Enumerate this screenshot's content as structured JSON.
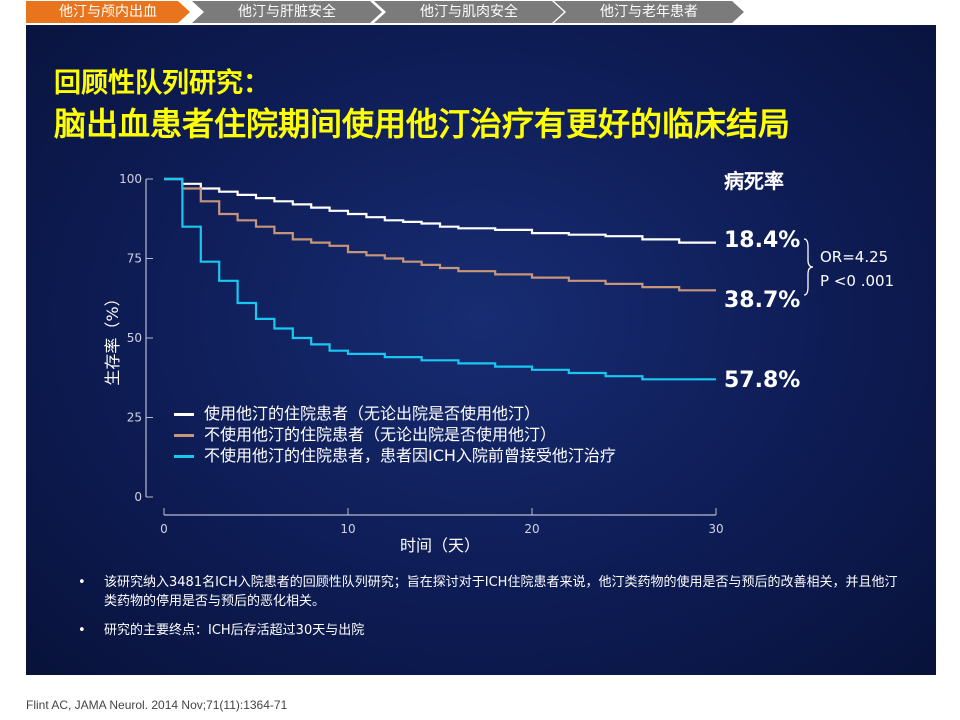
{
  "tabs": [
    {
      "label": "他汀与颅内出血",
      "active": true
    },
    {
      "label": "他汀与肝脏安全",
      "active": false
    },
    {
      "label": "他汀与肌肉安全",
      "active": false
    },
    {
      "label": "他汀与老年患者",
      "active": false
    }
  ],
  "title": {
    "line1": "回顾性队列研究：",
    "line2": "脑出血患者住院期间使用他汀治疗有更好的临床结局"
  },
  "mortality": {
    "label": "病死率",
    "values": [
      "18.4%",
      "38.7%",
      "57.8%"
    ],
    "or_text": "OR=4.25",
    "p_text": "P <0 .001"
  },
  "chart_data": {
    "type": "line",
    "title": "",
    "xlabel": "时间（天）",
    "ylabel": "生存率（%）",
    "xlim": [
      0,
      30
    ],
    "ylim": [
      0,
      100
    ],
    "xticks": [
      0,
      10,
      20,
      30
    ],
    "yticks": [
      0,
      25,
      50,
      75,
      100
    ],
    "series": [
      {
        "name": "使用他汀的住院患者（无论出院是否使用他汀）",
        "color": "#ffffff",
        "points": [
          [
            0,
            100
          ],
          [
            1,
            100
          ],
          [
            1,
            98.5
          ],
          [
            2,
            98.5
          ],
          [
            2,
            97
          ],
          [
            3,
            97
          ],
          [
            3,
            96
          ],
          [
            4,
            96
          ],
          [
            4,
            95
          ],
          [
            5,
            95
          ],
          [
            5,
            94
          ],
          [
            6,
            94
          ],
          [
            6,
            93
          ],
          [
            7,
            93
          ],
          [
            7,
            92
          ],
          [
            8,
            92
          ],
          [
            8,
            91
          ],
          [
            9,
            91
          ],
          [
            9,
            90
          ],
          [
            10,
            90
          ],
          [
            10,
            89
          ],
          [
            11,
            89
          ],
          [
            11,
            88
          ],
          [
            12,
            88
          ],
          [
            12,
            87
          ],
          [
            13,
            87
          ],
          [
            13,
            86.5
          ],
          [
            14,
            86.5
          ],
          [
            14,
            86
          ],
          [
            15,
            86
          ],
          [
            15,
            85
          ],
          [
            16,
            85
          ],
          [
            16,
            84.5
          ],
          [
            18,
            84.5
          ],
          [
            18,
            84
          ],
          [
            20,
            84
          ],
          [
            20,
            83
          ],
          [
            22,
            83
          ],
          [
            22,
            82.5
          ],
          [
            24,
            82.5
          ],
          [
            24,
            82
          ],
          [
            26,
            82
          ],
          [
            26,
            81
          ],
          [
            28,
            81
          ],
          [
            28,
            80
          ],
          [
            30,
            80
          ]
        ]
      },
      {
        "name": "不使用他汀的住院患者（无论出院是否使用他汀）",
        "color": "#c8957a",
        "points": [
          [
            0,
            100
          ],
          [
            1,
            100
          ],
          [
            1,
            97
          ],
          [
            2,
            97
          ],
          [
            2,
            93
          ],
          [
            3,
            93
          ],
          [
            3,
            89
          ],
          [
            4,
            89
          ],
          [
            4,
            87
          ],
          [
            5,
            87
          ],
          [
            5,
            85
          ],
          [
            6,
            85
          ],
          [
            6,
            83
          ],
          [
            7,
            83
          ],
          [
            7,
            81
          ],
          [
            8,
            81
          ],
          [
            8,
            80
          ],
          [
            9,
            80
          ],
          [
            9,
            79
          ],
          [
            10,
            79
          ],
          [
            10,
            77
          ],
          [
            11,
            77
          ],
          [
            11,
            76
          ],
          [
            12,
            76
          ],
          [
            12,
            75
          ],
          [
            13,
            75
          ],
          [
            13,
            74
          ],
          [
            14,
            74
          ],
          [
            14,
            73
          ],
          [
            15,
            73
          ],
          [
            15,
            72
          ],
          [
            16,
            72
          ],
          [
            16,
            71
          ],
          [
            18,
            71
          ],
          [
            18,
            70
          ],
          [
            20,
            70
          ],
          [
            20,
            69
          ],
          [
            22,
            69
          ],
          [
            22,
            68
          ],
          [
            24,
            68
          ],
          [
            24,
            67
          ],
          [
            26,
            67
          ],
          [
            26,
            66
          ],
          [
            28,
            66
          ],
          [
            28,
            65
          ],
          [
            30,
            65
          ]
        ]
      },
      {
        "name": "不使用他汀的住院患者，患者因ICH入院前曾接受他汀治疗",
        "color": "#19c8f0",
        "points": [
          [
            0,
            100
          ],
          [
            1,
            100
          ],
          [
            1,
            85
          ],
          [
            2,
            85
          ],
          [
            2,
            74
          ],
          [
            3,
            74
          ],
          [
            3,
            68
          ],
          [
            4,
            68
          ],
          [
            4,
            61
          ],
          [
            5,
            61
          ],
          [
            5,
            56
          ],
          [
            6,
            56
          ],
          [
            6,
            53
          ],
          [
            7,
            53
          ],
          [
            7,
            50
          ],
          [
            8,
            50
          ],
          [
            8,
            48
          ],
          [
            9,
            48
          ],
          [
            9,
            46
          ],
          [
            10,
            46
          ],
          [
            10,
            45
          ],
          [
            12,
            45
          ],
          [
            12,
            44
          ],
          [
            14,
            44
          ],
          [
            14,
            43
          ],
          [
            16,
            43
          ],
          [
            16,
            42
          ],
          [
            18,
            42
          ],
          [
            18,
            41
          ],
          [
            20,
            41
          ],
          [
            20,
            40
          ],
          [
            22,
            40
          ],
          [
            22,
            39
          ],
          [
            24,
            39
          ],
          [
            24,
            38
          ],
          [
            26,
            38
          ],
          [
            26,
            37
          ],
          [
            30,
            37
          ]
        ]
      }
    ]
  },
  "bullets": [
    "该研究纳入3481名ICH入院患者的回顾性队列研究；旨在探讨对于ICH住院患者来说，他汀类药物的使用是否与预后的改善相关，并且他汀类药物的停用是否与预后的恶化相关。",
    "研究的主要终点：ICH后存活超过30天与出院"
  ],
  "bullet_symbol": "•",
  "citation": "Flint AC, JAMA Neurol. 2014 Nov;71(11):1364-71"
}
